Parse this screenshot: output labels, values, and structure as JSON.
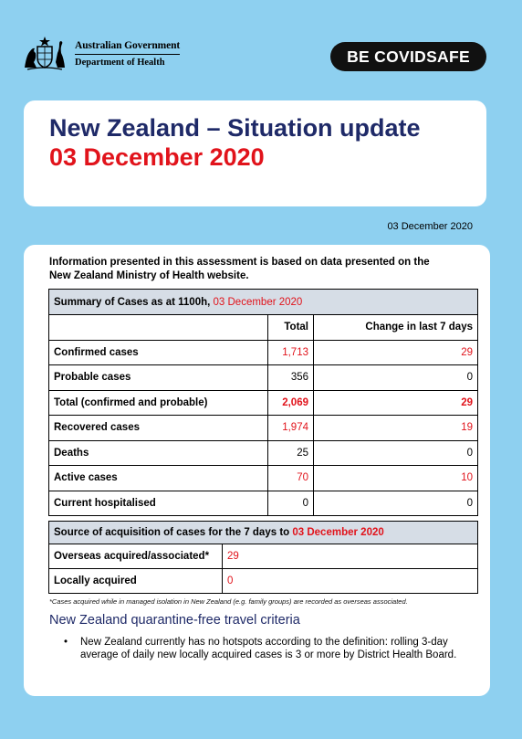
{
  "header": {
    "gov_name": "Australian Government",
    "gov_dept": "Department of Health",
    "covidsafe_prefix": "BE COVID",
    "covidsafe_suffix": "SAFE"
  },
  "title": {
    "main": "New Zealand – Situation update",
    "date": "03 December 2020"
  },
  "report_date": "03 December 2020",
  "intro": "Information presented in this assessment is based on data presented on the New Zealand Ministry of Health website.",
  "summary": {
    "heading_prefix": "Summary of Cases as at 1100h, ",
    "heading_date": "03 December 2020",
    "col_total": "Total",
    "col_change": "Change in last 7 days",
    "rows": [
      {
        "label": "Confirmed cases",
        "total": "1,713",
        "change": "29"
      },
      {
        "label": "Probable cases",
        "total": "356",
        "change": "0"
      },
      {
        "label": "Total (confirmed and probable)",
        "total": "2,069",
        "change": "29"
      },
      {
        "label": "Recovered cases",
        "total": "1,974",
        "change": "19"
      },
      {
        "label": "Deaths",
        "total": "25",
        "change": "0"
      },
      {
        "label": "Active cases",
        "total": "70",
        "change": "10"
      },
      {
        "label": "Current hospitalised",
        "total": "0",
        "change": "0"
      }
    ]
  },
  "source": {
    "heading_prefix": "Source of acquisition of cases for the 7 days to ",
    "heading_date": "03 December 2020",
    "rows": [
      {
        "label": "Overseas acquired/associated*",
        "value": "29"
      },
      {
        "label": "Locally acquired",
        "value": "0"
      }
    ]
  },
  "footnote": "*Cases acquired while in managed isolation in New Zealand (e.g. family groups) are recorded as overseas associated.",
  "criteria": {
    "heading": "New Zealand quarantine-free travel criteria",
    "bullet": "New Zealand currently has no hotspots according to the definition: rolling 3-day average of daily new locally acquired cases is 3 or more by District Health Board."
  },
  "colors": {
    "background": "#8ed0f0",
    "navy": "#1f2a68",
    "red": "#e1131b",
    "table_header": "#d6dde6"
  }
}
